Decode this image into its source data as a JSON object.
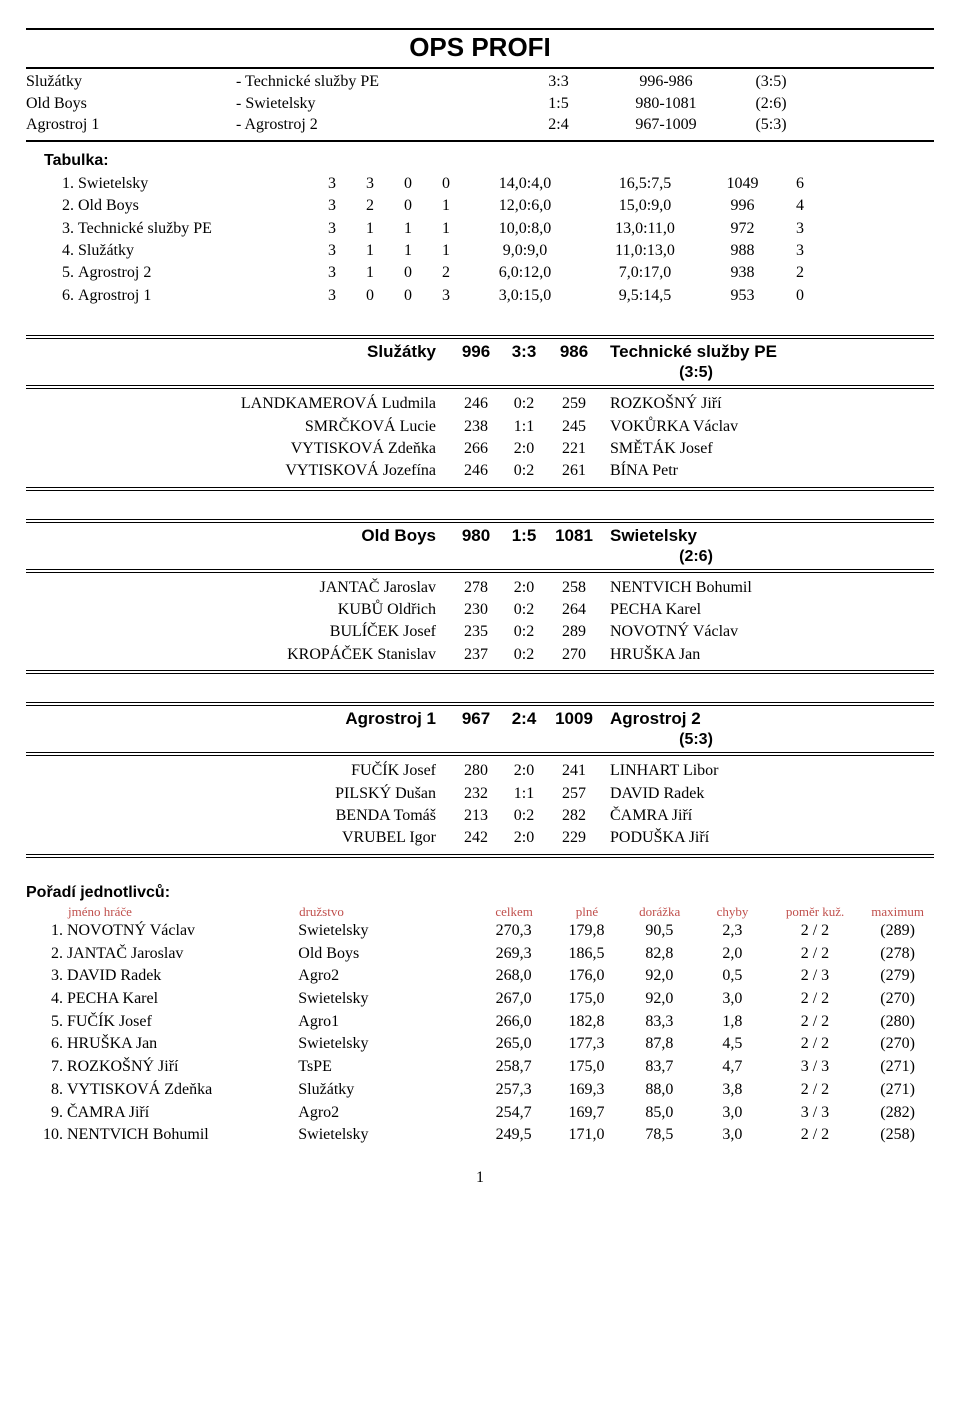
{
  "title": "OPS PROFI",
  "fixtures": [
    {
      "home": "Služátky",
      "away": "- Technické služby PE",
      "score": "3:3",
      "agg": "996-986",
      "set": "(3:5)"
    },
    {
      "home": "Old Boys",
      "away": "- Swietelsky",
      "score": "1:5",
      "agg": "980-1081",
      "set": "(2:6)"
    },
    {
      "home": "Agrostroj 1",
      "away": "- Agrostroj 2",
      "score": "2:4",
      "agg": "967-1009",
      "set": "(5:3)"
    }
  ],
  "tabulka_label": "Tabulka:",
  "standings": [
    {
      "rank": "1.",
      "team": "Swietelsky",
      "n1": "3",
      "n2": "3",
      "n3": "0",
      "n4": "0",
      "a1": "14,0:4,0",
      "a2": "16,5:7,5",
      "tot": "1049",
      "pts": "6"
    },
    {
      "rank": "2.",
      "team": "Old Boys",
      "n1": "3",
      "n2": "2",
      "n3": "0",
      "n4": "1",
      "a1": "12,0:6,0",
      "a2": "15,0:9,0",
      "tot": "996",
      "pts": "4"
    },
    {
      "rank": "3.",
      "team": "Technické služby PE",
      "n1": "3",
      "n2": "1",
      "n3": "1",
      "n4": "1",
      "a1": "10,0:8,0",
      "a2": "13,0:11,0",
      "tot": "972",
      "pts": "3"
    },
    {
      "rank": "4.",
      "team": "Služátky",
      "n1": "3",
      "n2": "1",
      "n3": "1",
      "n4": "1",
      "a1": "9,0:9,0",
      "a2": "11,0:13,0",
      "tot": "988",
      "pts": "3"
    },
    {
      "rank": "5.",
      "team": "Agrostroj 2",
      "n1": "3",
      "n2": "1",
      "n3": "0",
      "n4": "2",
      "a1": "6,0:12,0",
      "a2": "7,0:17,0",
      "tot": "938",
      "pts": "2"
    },
    {
      "rank": "6.",
      "team": "Agrostroj 1",
      "n1": "3",
      "n2": "0",
      "n3": "0",
      "n4": "3",
      "a1": "3,0:15,0",
      "a2": "9,5:14,5",
      "tot": "953",
      "pts": "0"
    }
  ],
  "matches": [
    {
      "home": "Služátky",
      "hs": "996",
      "sc": "3:3",
      "as": "986",
      "away": "Technické služby PE",
      "set": "(3:5)",
      "players": [
        {
          "ph": "LANDKAMEROVÁ Ludmila",
          "s1": "246",
          "sc": "0:2",
          "s2": "259",
          "pa": "ROZKOŠNÝ Jiří"
        },
        {
          "ph": "SMRČKOVÁ Lucie",
          "s1": "238",
          "sc": "1:1",
          "s2": "245",
          "pa": "VOKŮRKA Václav"
        },
        {
          "ph": "VYTISKOVÁ Zdeňka",
          "s1": "266",
          "sc": "2:0",
          "s2": "221",
          "pa": "SMĚTÁK Josef"
        },
        {
          "ph": "VYTISKOVÁ Jozefína",
          "s1": "246",
          "sc": "0:2",
          "s2": "261",
          "pa": "BÍNA Petr"
        }
      ]
    },
    {
      "home": "Old Boys",
      "hs": "980",
      "sc": "1:5",
      "as": "1081",
      "away": "Swietelsky",
      "set": "(2:6)",
      "players": [
        {
          "ph": "JANTAČ Jaroslav",
          "s1": "278",
          "sc": "2:0",
          "s2": "258",
          "pa": "NENTVICH Bohumil"
        },
        {
          "ph": "KUBŮ Oldřich",
          "s1": "230",
          "sc": "0:2",
          "s2": "264",
          "pa": "PECHA Karel"
        },
        {
          "ph": "BULÍČEK Josef",
          "s1": "235",
          "sc": "0:2",
          "s2": "289",
          "pa": "NOVOTNÝ Václav"
        },
        {
          "ph": "KROPÁČEK Stanislav",
          "s1": "237",
          "sc": "0:2",
          "s2": "270",
          "pa": "HRUŠKA Jan"
        }
      ]
    },
    {
      "home": "Agrostroj 1",
      "hs": "967",
      "sc": "2:4",
      "as": "1009",
      "away": "Agrostroj 2",
      "set": "(5:3)",
      "players": [
        {
          "ph": "FUČÍK Josef",
          "s1": "280",
          "sc": "2:0",
          "s2": "241",
          "pa": "LINHART Libor"
        },
        {
          "ph": "PILSKÝ Dušan",
          "s1": "232",
          "sc": "1:1",
          "s2": "257",
          "pa": "DAVID Radek"
        },
        {
          "ph": "BENDA Tomáš",
          "s1": "213",
          "sc": "0:2",
          "s2": "282",
          "pa": "ČAMRA Jiří"
        },
        {
          "ph": "VRUBEL Igor",
          "s1": "242",
          "sc": "2:0",
          "s2": "229",
          "pa": "PODUŠKA Jiří"
        }
      ]
    }
  ],
  "poradi_label": "Pořadí jednotlivců:",
  "poradi_hdr": {
    "n": "jméno hráče",
    "t": "družstvo",
    "c1": "celkem",
    "c2": "plné",
    "c3": "dorážka",
    "c4": "chyby",
    "c5": "poměr kuž.",
    "c6": "maximum"
  },
  "poradi": [
    {
      "r": "1.",
      "n": "NOVOTNÝ Václav",
      "t": "Swietelsky",
      "c1": "270,3",
      "c2": "179,8",
      "c3": "90,5",
      "c4": "2,3",
      "c5": "2 / 2",
      "c6": "(289)"
    },
    {
      "r": "2.",
      "n": "JANTAČ Jaroslav",
      "t": "Old Boys",
      "c1": "269,3",
      "c2": "186,5",
      "c3": "82,8",
      "c4": "2,0",
      "c5": "2 / 2",
      "c6": "(278)"
    },
    {
      "r": "3.",
      "n": "DAVID Radek",
      "t": "Agro2",
      "c1": "268,0",
      "c2": "176,0",
      "c3": "92,0",
      "c4": "0,5",
      "c5": "2 / 3",
      "c6": "(279)"
    },
    {
      "r": "4.",
      "n": "PECHA Karel",
      "t": "Swietelsky",
      "c1": "267,0",
      "c2": "175,0",
      "c3": "92,0",
      "c4": "3,0",
      "c5": "2 / 2",
      "c6": "(270)"
    },
    {
      "r": "5.",
      "n": "FUČÍK Josef",
      "t": "Agro1",
      "c1": "266,0",
      "c2": "182,8",
      "c3": "83,3",
      "c4": "1,8",
      "c5": "2 / 2",
      "c6": "(280)"
    },
    {
      "r": "6.",
      "n": "HRUŠKA Jan",
      "t": "Swietelsky",
      "c1": "265,0",
      "c2": "177,3",
      "c3": "87,8",
      "c4": "4,5",
      "c5": "2 / 2",
      "c6": "(270)"
    },
    {
      "r": "7.",
      "n": "ROZKOŠNÝ Jiří",
      "t": "TsPE",
      "c1": "258,7",
      "c2": "175,0",
      "c3": "83,7",
      "c4": "4,7",
      "c5": "3 / 3",
      "c6": "(271)"
    },
    {
      "r": "8.",
      "n": "VYTISKOVÁ Zdeňka",
      "t": "Služátky",
      "c1": "257,3",
      "c2": "169,3",
      "c3": "88,0",
      "c4": "3,8",
      "c5": "2 / 2",
      "c6": "(271)"
    },
    {
      "r": "9.",
      "n": "ČAMRA Jiří",
      "t": "Agro2",
      "c1": "254,7",
      "c2": "169,7",
      "c3": "85,0",
      "c4": "3,0",
      "c5": "3 / 3",
      "c6": "(282)"
    },
    {
      "r": "10.",
      "n": "NENTVICH Bohumil",
      "t": "Swietelsky",
      "c1": "249,5",
      "c2": "171,0",
      "c3": "78,5",
      "c4": "3,0",
      "c5": "2 / 2",
      "c6": "(258)"
    }
  ],
  "pagenum": "1"
}
